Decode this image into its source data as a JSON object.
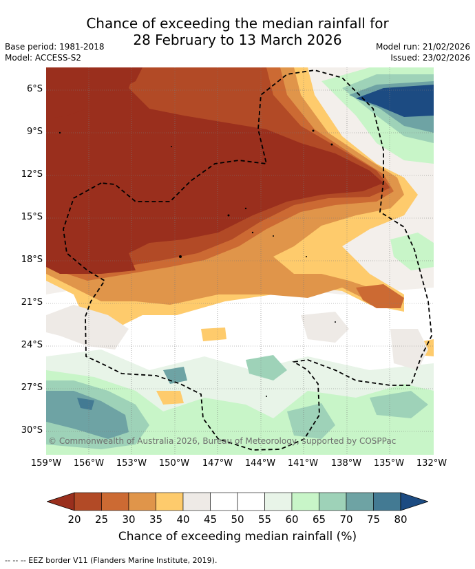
{
  "title_line1": "Chance of exceeding the median rainfall for",
  "title_line2": "28 February to 13 March 2026",
  "base_period": "Base period: 1981-2018",
  "model": "Model: ACCESS-S2",
  "model_run": "Model run: 21/02/2026",
  "issued": "Issued: 23/02/2026",
  "copyright": "© Commonwealth of Australia 2026, Bureau of Meteorology, supported by COSPPac",
  "lat_labels": [
    "6°S",
    "9°S",
    "12°S",
    "15°S",
    "18°S",
    "21°S",
    "24°S",
    "27°S",
    "30°S"
  ],
  "lon_labels": [
    "159°W",
    "156°W",
    "153°W",
    "150°W",
    "147°W",
    "144°W",
    "141°W",
    "138°W",
    "135°W",
    "132°W"
  ],
  "colorbar_ticks": [
    "20",
    "25",
    "30",
    "35",
    "40",
    "45",
    "50",
    "55",
    "60",
    "65",
    "70",
    "75",
    "80"
  ],
  "colorbar_colors": [
    "#9a2f1d",
    "#b24a26",
    "#cc6a33",
    "#e0954a",
    "#fecb6c",
    "#eeeae6",
    "#ffffff",
    "#ffffff",
    "#e8f4e8",
    "#c8f5c8",
    "#9ed2b8",
    "#6ea3a4",
    "#437a93",
    "#1c4b82"
  ],
  "colorbar_title": "Chance of exceeding median rainfall (%)",
  "footnote": "--  --  -- EEZ border V11 (Flanders Marine Institute, 2019)."
}
